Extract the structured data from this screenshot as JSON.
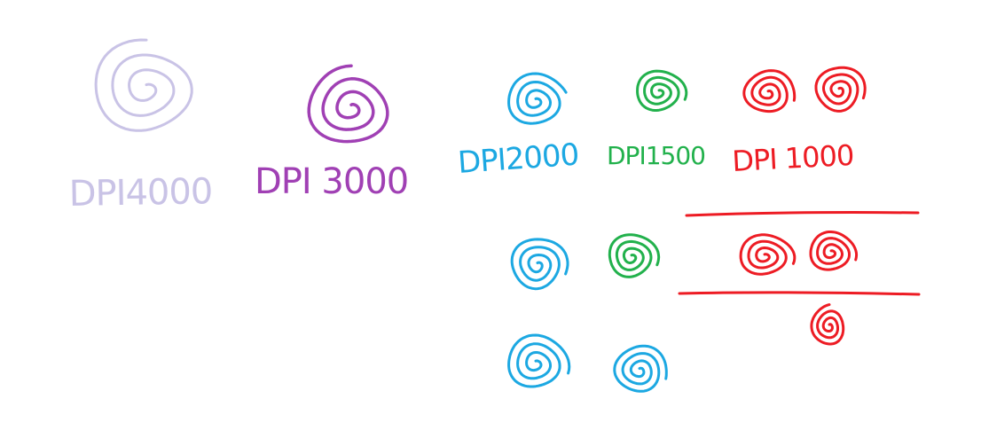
{
  "colors": {
    "background": "#ffffff",
    "lavender": "#c9c3e6",
    "purple": "#a040b4",
    "blue": "#1ca8e2",
    "green": "#22b14c",
    "red": "#ed1c24"
  },
  "labels": {
    "dpi4000": "DPI4000",
    "dpi3000": "DPI 3000",
    "dpi2000": "DPI2000",
    "dpi1500": "DPI1500",
    "dpi1000": "DPI 1000"
  }
}
